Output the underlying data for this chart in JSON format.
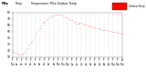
{
  "bg_color": "#ffffff",
  "line_color": "#ff0000",
  "text_color": "#000000",
  "grid_color": "#aaaaaa",
  "legend_color": "#ff0000",
  "ylim": [
    10,
    80
  ],
  "xlim": [
    0,
    1440
  ],
  "y_ticks": [
    10,
    20,
    30,
    40,
    50,
    60,
    70,
    80
  ],
  "title_parts": [
    "Milw",
    "Temp",
    "  Temperature: Milw Outdoor Temp"
  ],
  "title_bold": [
    true,
    false,
    false
  ],
  "legend_label": "Outdoor Temp",
  "temp_data": [
    [
      0,
      18
    ],
    [
      20,
      17
    ],
    [
      40,
      16
    ],
    [
      60,
      15
    ],
    [
      80,
      14
    ],
    [
      100,
      14
    ],
    [
      120,
      14
    ],
    [
      140,
      15
    ],
    [
      160,
      17
    ],
    [
      180,
      20
    ],
    [
      200,
      24
    ],
    [
      220,
      28
    ],
    [
      240,
      32
    ],
    [
      260,
      36
    ],
    [
      280,
      40
    ],
    [
      300,
      44
    ],
    [
      320,
      48
    ],
    [
      340,
      52
    ],
    [
      360,
      56
    ],
    [
      380,
      60
    ],
    [
      400,
      64
    ],
    [
      410,
      66
    ],
    [
      420,
      66
    ],
    [
      440,
      68
    ],
    [
      460,
      70
    ],
    [
      480,
      72
    ],
    [
      500,
      73
    ],
    [
      520,
      75
    ],
    [
      540,
      76
    ],
    [
      560,
      77
    ],
    [
      580,
      77
    ],
    [
      600,
      77
    ],
    [
      620,
      77
    ],
    [
      640,
      76
    ],
    [
      660,
      75
    ],
    [
      680,
      73
    ],
    [
      700,
      72
    ],
    [
      720,
      71
    ],
    [
      740,
      70
    ],
    [
      760,
      69
    ],
    [
      780,
      68
    ],
    [
      800,
      66
    ],
    [
      820,
      65
    ],
    [
      840,
      63
    ],
    [
      860,
      62
    ],
    [
      870,
      63
    ],
    [
      880,
      64
    ],
    [
      900,
      64
    ],
    [
      920,
      62
    ],
    [
      940,
      61
    ],
    [
      960,
      61
    ],
    [
      980,
      60
    ],
    [
      1000,
      59
    ],
    [
      1020,
      58
    ],
    [
      1040,
      58
    ],
    [
      1060,
      57
    ],
    [
      1080,
      56
    ],
    [
      1100,
      56
    ],
    [
      1120,
      55
    ],
    [
      1140,
      54
    ],
    [
      1160,
      54
    ],
    [
      1180,
      53
    ],
    [
      1200,
      53
    ],
    [
      1220,
      52
    ],
    [
      1240,
      52
    ],
    [
      1260,
      51
    ],
    [
      1280,
      51
    ],
    [
      1300,
      50
    ],
    [
      1320,
      50
    ],
    [
      1340,
      49
    ],
    [
      1360,
      49
    ],
    [
      1380,
      48
    ],
    [
      1400,
      48
    ],
    [
      1420,
      47
    ],
    [
      1440,
      47
    ]
  ],
  "x_tick_positions": [
    0,
    60,
    120,
    180,
    240,
    300,
    360,
    420,
    480,
    540,
    600,
    660,
    720,
    780,
    840,
    900,
    960,
    1020,
    1080,
    1140,
    1200,
    1260,
    1320,
    1380,
    1440
  ],
  "x_tick_labels": [
    "Fr\n12a",
    "Fr\n1a",
    "Fr\n2a",
    "Fr\n3a",
    "Fr\n4a",
    "Fr\n5a",
    "Fr\n6a",
    "Fr\n7a",
    "Fr\n8a",
    "Fr\n9a",
    "Fr\n10a",
    "Fr\n11a",
    "Fr\n12p",
    "Fr\n1p",
    "Fr\n2p",
    "Fr\n3p",
    "Fr\n4p",
    "Fr\n5p",
    "Fr\n6p",
    "Fr\n7p",
    "Fr\n8p",
    "Fr\n9p",
    "Fr\n10p",
    "Fr\n11p",
    "Sa\n12a"
  ]
}
